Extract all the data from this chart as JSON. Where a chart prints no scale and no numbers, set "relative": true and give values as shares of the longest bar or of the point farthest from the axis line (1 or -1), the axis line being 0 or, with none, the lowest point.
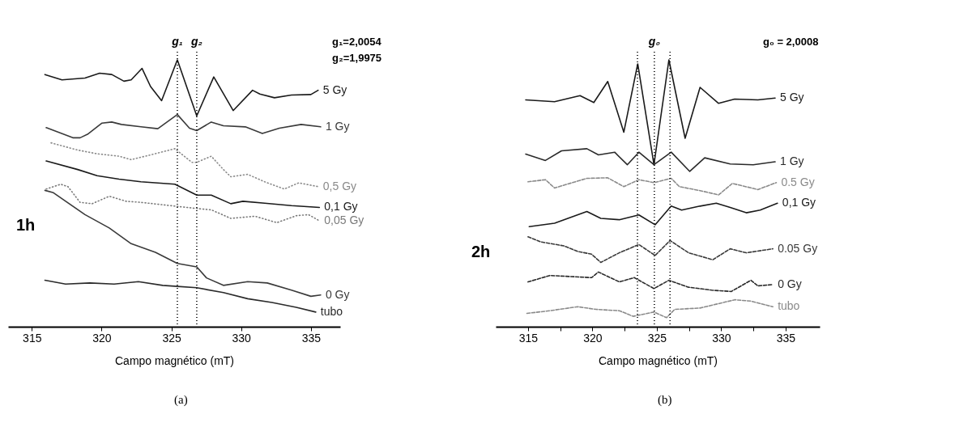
{
  "chart_data": [
    {
      "type": "line",
      "relative": true,
      "xlabel": "Campo magnético (mT)",
      "xlim": [
        313.3,
        337.1
      ],
      "xticks": [
        315,
        320,
        325,
        330,
        335
      ],
      "annotations": [
        "g₁=2,0054",
        "g₂=1,9975",
        "1h",
        "(a)"
      ],
      "ref_lines": [
        {
          "axis": "x",
          "value": 325.43,
          "label": "g₁",
          "line_style": "dotted",
          "color": "#000000"
        },
        {
          "axis": "x",
          "value": 326.82,
          "label": "g₂",
          "line_style": "dotted",
          "color": "#000000"
        }
      ],
      "series": [
        {
          "name": "5 Gy",
          "color": "#1a1a1a",
          "line_style": "solid",
          "x": [
            315.94,
            317.16,
            318.81,
            319.86,
            320.73,
            321.6,
            322.12,
            322.9,
            323.51,
            324.3,
            325.43,
            326.82,
            328.04,
            329.43,
            330.82,
            331.34,
            332.39,
            333.61,
            335.0,
            335.52
          ],
          "values": [
            0.945,
            0.925,
            0.932,
            0.95,
            0.945,
            0.92,
            0.925,
            0.968,
            0.9,
            0.847,
            1.0,
            0.79,
            0.936,
            0.81,
            0.886,
            0.872,
            0.858,
            0.868,
            0.87,
            0.886
          ]
        },
        {
          "name": "1 Gy",
          "color": "#3a3a3a",
          "line_style": "solid",
          "x": [
            316.03,
            317.94,
            318.46,
            318.99,
            320.03,
            320.73,
            321.42,
            322.82,
            324.03,
            325.43,
            326.3,
            326.82,
            327.86,
            328.73,
            330.3,
            331.52,
            332.74,
            334.3,
            335.7
          ],
          "values": [
            0.746,
            0.708,
            0.708,
            0.721,
            0.763,
            0.767,
            0.758,
            0.749,
            0.742,
            0.795,
            0.744,
            0.735,
            0.767,
            0.753,
            0.749,
            0.724,
            0.744,
            0.758,
            0.749
          ]
        },
        {
          "name": "0,5 Gy",
          "color": "#8a8a8a",
          "line_style": "dotted",
          "x": [
            316.38,
            318.29,
            319.68,
            321.25,
            322.12,
            323.51,
            325.25,
            326.47,
            326.82,
            327.86,
            328.73,
            329.26,
            330.47,
            331.69,
            333.09,
            334.13,
            335.52
          ],
          "values": [
            0.689,
            0.662,
            0.648,
            0.639,
            0.626,
            0.644,
            0.667,
            0.616,
            0.616,
            0.639,
            0.589,
            0.562,
            0.571,
            0.543,
            0.516,
            0.539,
            0.525
          ]
        },
        {
          "name": "0,1 Gy",
          "color": "#1a1a1a",
          "line_style": "solid",
          "x": [
            316.03,
            318.29,
            319.68,
            321.25,
            322.82,
            325.25,
            326.82,
            327.86,
            329.26,
            330.13,
            331.69,
            333.61,
            335.61
          ],
          "values": [
            0.621,
            0.589,
            0.566,
            0.553,
            0.543,
            0.534,
            0.493,
            0.493,
            0.461,
            0.47,
            0.463,
            0.454,
            0.447
          ]
        },
        {
          "name": "0,05 Gy",
          "color": "#7a7a7a",
          "line_style": "dotted",
          "x": [
            316.03,
            317.07,
            317.59,
            318.46,
            319.33,
            320.55,
            321.77,
            322.82,
            325.25,
            326.82,
            327.86,
            329.26,
            331.0,
            332.56,
            333.95,
            334.83,
            335.61
          ],
          "values": [
            0.516,
            0.534,
            0.525,
            0.466,
            0.461,
            0.489,
            0.47,
            0.466,
            0.452,
            0.443,
            0.438,
            0.406,
            0.414,
            0.39,
            0.416,
            0.42,
            0.397
          ]
        },
        {
          "name": "0 Gy",
          "color": "#3a3a3a",
          "line_style": "solid",
          "x": [
            315.94,
            316.55,
            318.81,
            320.55,
            322.12,
            323.86,
            325.43,
            326.82,
            327.52,
            328.73,
            330.47,
            331.87,
            333.61,
            335.0,
            335.7
          ],
          "values": [
            0.511,
            0.502,
            0.42,
            0.37,
            0.311,
            0.279,
            0.237,
            0.224,
            0.183,
            0.155,
            0.169,
            0.164,
            0.137,
            0.114,
            0.119
          ]
        },
        {
          "name": "tubo",
          "color": "#2a2a2a",
          "line_style": "solid",
          "x": [
            315.94,
            317.42,
            319.16,
            320.9,
            322.64,
            324.38,
            325.43,
            326.82,
            328.73,
            330.47,
            332.21,
            333.95,
            335.35
          ],
          "values": [
            0.174,
            0.16,
            0.164,
            0.16,
            0.169,
            0.155,
            0.151,
            0.146,
            0.128,
            0.105,
            0.091,
            0.073,
            0.055
          ]
        }
      ]
    },
    {
      "type": "line",
      "relative": true,
      "xlabel": "Campo magnético (mT)",
      "xlim": [
        312.49,
        337.65
      ],
      "xticks": [
        315,
        {
          "value": 317.5,
          "label": null
        },
        320,
        {
          "value": 322.5,
          "label": null
        },
        325,
        {
          "value": 327.5,
          "label": null
        },
        330,
        {
          "value": 332.5,
          "label": null
        },
        335
      ],
      "annotations": [
        "g₀ = 2,0008",
        "2h",
        "(b)"
      ],
      "ref_lines": [
        {
          "axis": "x",
          "value": 323.5,
          "label": null,
          "line_style": "dotted",
          "color": "#000000"
        },
        {
          "axis": "x",
          "value": 324.81,
          "label": "g₀",
          "line_style": "dotted",
          "color": "#000000"
        },
        {
          "axis": "x",
          "value": 326.03,
          "label": null,
          "line_style": "dotted",
          "color": "#000000"
        }
      ],
      "series": [
        {
          "name": "5 Gy",
          "color": "#1a1a1a",
          "line_style": "solid",
          "x": [
            314.82,
            317.06,
            319.04,
            320.11,
            321.19,
            322.44,
            323.52,
            324.78,
            325.94,
            327.2,
            328.36,
            329.8,
            331.05,
            332.85,
            334.19
          ],
          "values": [
            0.85,
            0.843,
            0.866,
            0.84,
            0.919,
            0.729,
            0.985,
            0.607,
            1.0,
            0.706,
            0.897,
            0.837,
            0.853,
            0.85,
            0.857
          ]
        },
        {
          "name": "1 Gy",
          "color": "#2a2a2a",
          "line_style": "solid",
          "x": [
            314.82,
            316.35,
            317.6,
            319.57,
            320.47,
            321.73,
            322.71,
            323.61,
            324.78,
            326.12,
            327.56,
            328.72,
            330.7,
            332.49,
            334.19
          ],
          "values": [
            0.647,
            0.623,
            0.659,
            0.667,
            0.644,
            0.654,
            0.607,
            0.654,
            0.607,
            0.654,
            0.582,
            0.633,
            0.61,
            0.607,
            0.618
          ]
        },
        {
          "name": "0.5 Gy",
          "color": "#8a8a8a",
          "line_style": "dashed",
          "x": [
            315.0,
            316.35,
            317.06,
            319.57,
            321.19,
            322.44,
            323.61,
            324.78,
            326.12,
            326.75,
            328.36,
            329.8,
            330.87,
            332.85,
            334.28
          ],
          "values": [
            0.543,
            0.551,
            0.52,
            0.556,
            0.558,
            0.525,
            0.551,
            0.54,
            0.556,
            0.525,
            0.51,
            0.494,
            0.537,
            0.514,
            0.54
          ]
        },
        {
          "name": "0,1 Gy",
          "color": "#1a1a1a",
          "line_style": "solid",
          "x": [
            315.09,
            317.06,
            319.57,
            320.65,
            322.09,
            323.61,
            324.87,
            326.12,
            326.93,
            328.36,
            329.62,
            330.7,
            331.95,
            333.03,
            334.37
          ],
          "values": [
            0.375,
            0.388,
            0.432,
            0.406,
            0.401,
            0.419,
            0.382,
            0.452,
            0.437,
            0.452,
            0.463,
            0.447,
            0.427,
            0.437,
            0.463
          ]
        },
        {
          "name": "0.05 Gy",
          "color": "#3a3a3a",
          "line_style": "dashed",
          "x": [
            315.0,
            315.99,
            317.78,
            318.86,
            319.93,
            320.65,
            322.09,
            323.61,
            324.87,
            326.03,
            327.47,
            329.35,
            330.7,
            331.95,
            334.01
          ],
          "values": [
            0.337,
            0.318,
            0.303,
            0.282,
            0.272,
            0.241,
            0.277,
            0.308,
            0.267,
            0.323,
            0.277,
            0.251,
            0.292,
            0.277,
            0.292
          ]
        },
        {
          "name": "0 Gy",
          "color": "#2a2a2a",
          "line_style": "dashed",
          "x": [
            315.0,
            316.7,
            319.93,
            320.47,
            322.09,
            323.25,
            324.78,
            325.94,
            327.47,
            329.26,
            330.78,
            332.31,
            332.85,
            334.01
          ],
          "values": [
            0.168,
            0.192,
            0.184,
            0.205,
            0.168,
            0.184,
            0.143,
            0.174,
            0.148,
            0.137,
            0.132,
            0.174,
            0.153,
            0.158
          ]
        },
        {
          "name": "tubo",
          "color": "#8a8a8a",
          "line_style": "dashed",
          "x": [
            314.91,
            316.7,
            318.86,
            320.29,
            322.09,
            323.16,
            324.78,
            325.76,
            326.39,
            328.36,
            331.05,
            332.31,
            334.01
          ],
          "values": [
            0.05,
            0.06,
            0.075,
            0.065,
            0.06,
            0.039,
            0.055,
            0.034,
            0.065,
            0.07,
            0.101,
            0.096,
            0.075
          ]
        }
      ]
    }
  ]
}
